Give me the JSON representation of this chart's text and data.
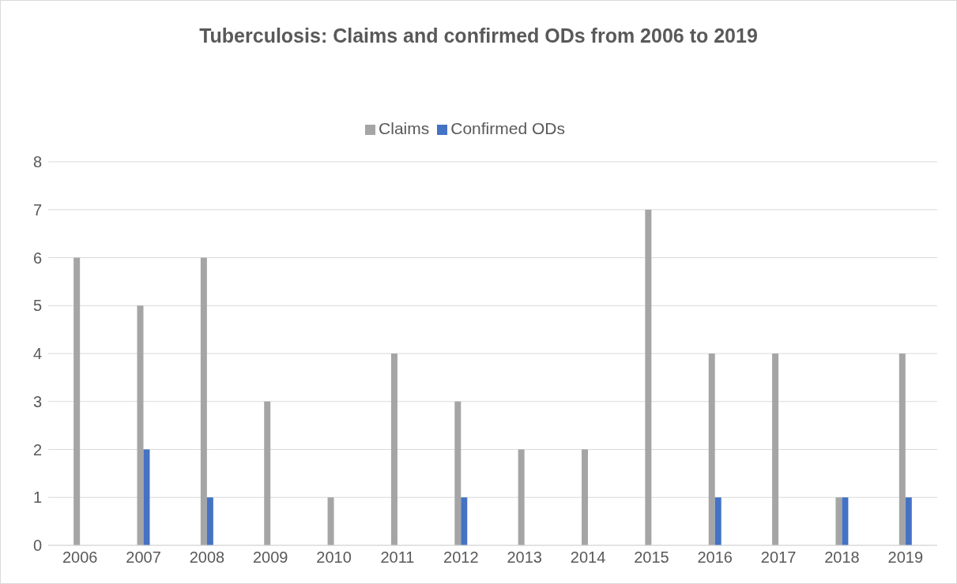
{
  "chart_data": {
    "type": "bar",
    "title": "Tuberculosis: Claims and confirmed ODs from 2006 to 2019",
    "categories": [
      "2006",
      "2007",
      "2008",
      "2009",
      "2010",
      "2011",
      "2012",
      "2013",
      "2014",
      "2015",
      "2016",
      "2017",
      "2018",
      "2019"
    ],
    "series": [
      {
        "name": "Claims",
        "color": "#a5a5a5",
        "values": [
          6,
          5,
          6,
          3,
          1,
          4,
          3,
          2,
          2,
          7,
          4,
          4,
          1,
          4
        ]
      },
      {
        "name": "Confirmed ODs",
        "color": "#4472c4",
        "values": [
          0,
          2,
          1,
          0,
          0,
          0,
          1,
          0,
          0,
          0,
          1,
          0,
          1,
          1
        ]
      }
    ],
    "ylim": [
      0,
      8
    ],
    "yticks": [
      0,
      1,
      2,
      3,
      4,
      5,
      6,
      7,
      8
    ],
    "grid": "y",
    "legend": "top"
  }
}
